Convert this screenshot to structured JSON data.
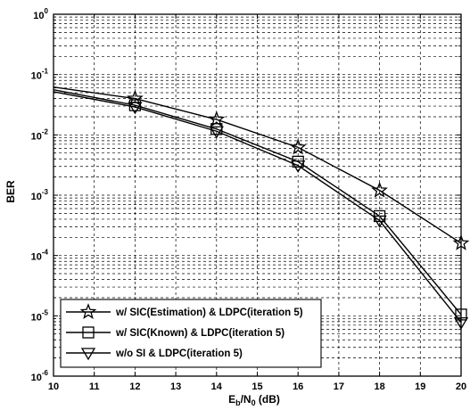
{
  "chart_data": {
    "type": "line",
    "title": "",
    "xlabel": {
      "base": "E",
      "sub1": "b",
      "mid": "/N",
      "sub2": "0",
      "tail": " (dB)"
    },
    "ylabel": "BER",
    "xlim": [
      10,
      20
    ],
    "ylim": [
      1e-06,
      1
    ],
    "yscale": "log",
    "grid": true,
    "legend_position": "bottom-left",
    "x_ticks": [
      10,
      11,
      12,
      13,
      14,
      15,
      16,
      17,
      18,
      19,
      20
    ],
    "y_ticks": [
      {
        "value": 1,
        "mantissa": "10",
        "exp": "0"
      },
      {
        "value": 0.1,
        "mantissa": "10",
        "exp": "-1"
      },
      {
        "value": 0.01,
        "mantissa": "10",
        "exp": "-2"
      },
      {
        "value": 0.001,
        "mantissa": "10",
        "exp": "-3"
      },
      {
        "value": 0.0001,
        "mantissa": "10",
        "exp": "-4"
      },
      {
        "value": 1e-05,
        "mantissa": "10",
        "exp": "-5"
      },
      {
        "value": 1e-06,
        "mantissa": "10",
        "exp": "-6"
      }
    ],
    "series": [
      {
        "name": "w/ SIC(Estimation) & LDPC(iteration 5)",
        "marker": "star",
        "x": [
          10,
          12,
          14,
          16,
          18,
          20
        ],
        "y": [
          0.062,
          0.04,
          0.018,
          0.0062,
          0.0012,
          0.00016
        ]
      },
      {
        "name": "w/ SIC(Known) & LDPC(iteration 5)",
        "marker": "square",
        "x": [
          10,
          12,
          14,
          16,
          18,
          20
        ],
        "y": [
          0.056,
          0.031,
          0.0125,
          0.0036,
          0.00045,
          1.05e-05
        ]
      },
      {
        "name": "w/o SI & LDPC(iteration 5)",
        "marker": "triangle-down",
        "x": [
          10,
          12,
          14,
          16,
          18,
          20
        ],
        "y": [
          0.052,
          0.029,
          0.0115,
          0.0031,
          0.00038,
          7.8e-06
        ]
      }
    ]
  }
}
